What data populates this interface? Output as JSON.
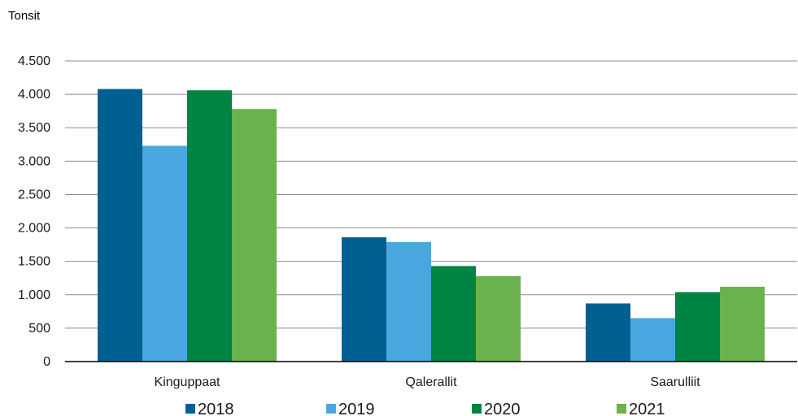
{
  "chart_data": {
    "type": "bar",
    "ylabel": "Tonsit",
    "ylim": [
      0,
      4500
    ],
    "yticks": [
      {
        "value": 0,
        "label": "0"
      },
      {
        "value": 500,
        "label": "500"
      },
      {
        "value": 1000,
        "label": "1.000"
      },
      {
        "value": 1500,
        "label": "1.500"
      },
      {
        "value": 2000,
        "label": "2.000"
      },
      {
        "value": 2500,
        "label": "2.500"
      },
      {
        "value": 3000,
        "label": "3.000"
      },
      {
        "value": 3500,
        "label": "3.500"
      },
      {
        "value": 4000,
        "label": "4.000"
      },
      {
        "value": 4500,
        "label": "4.500"
      }
    ],
    "grid": true,
    "legend_position": "bottom",
    "categories": [
      "Kinguppaat",
      "Qalerallit",
      "Saarulliit"
    ],
    "series": [
      {
        "name": "2018",
        "color": "#006092",
        "values": [
          4080,
          1860,
          870
        ]
      },
      {
        "name": "2019",
        "color": "#4aa6df",
        "values": [
          3230,
          1790,
          650
        ]
      },
      {
        "name": "2020",
        "color": "#008443",
        "values": [
          4060,
          1430,
          1040
        ]
      },
      {
        "name": "2021",
        "color": "#6ab24d",
        "values": [
          3780,
          1280,
          1120
        ]
      }
    ]
  }
}
